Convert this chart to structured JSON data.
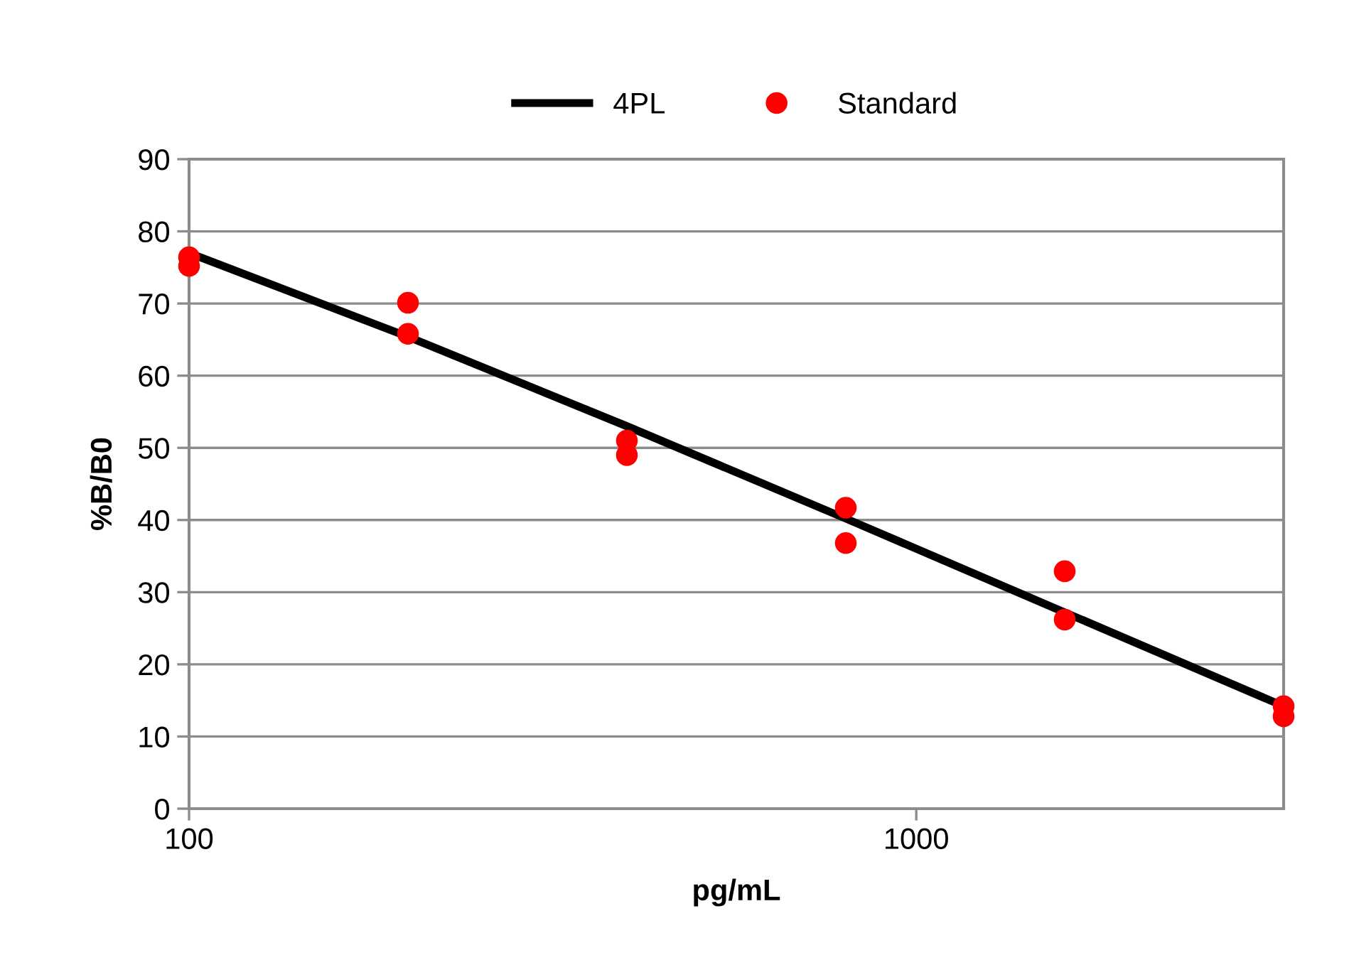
{
  "chart_data": {
    "type": "scatter",
    "xlabel": "pg/mL",
    "ylabel": "%B/B0",
    "log": "x",
    "xlim": [
      100,
      3200
    ],
    "xticks": [
      100,
      1000
    ],
    "ylim": [
      0,
      90
    ],
    "yticks": [
      0,
      10,
      20,
      30,
      40,
      50,
      60,
      70,
      80,
      90
    ],
    "grid": "y",
    "legend": "top",
    "series": [
      {
        "name": "4PL",
        "type": "line",
        "color": "#000000",
        "marker": "none",
        "line_style": "solid",
        "x": [
          100,
          200,
          400,
          800,
          1600,
          3200
        ],
        "values": [
          77.0,
          65.4,
          53.0,
          40.2,
          27.2,
          14.2
        ]
      },
      {
        "name": "Standard",
        "color": "#ff0000",
        "marker": "circle",
        "x": [
          100,
          100,
          200,
          200,
          400,
          400,
          800,
          800,
          1600,
          1600,
          3200,
          3200
        ],
        "values": [
          76.4,
          75.2,
          70.1,
          65.8,
          51.0,
          49.0,
          41.7,
          36.8,
          32.9,
          26.2,
          14.2,
          12.8
        ]
      }
    ]
  }
}
